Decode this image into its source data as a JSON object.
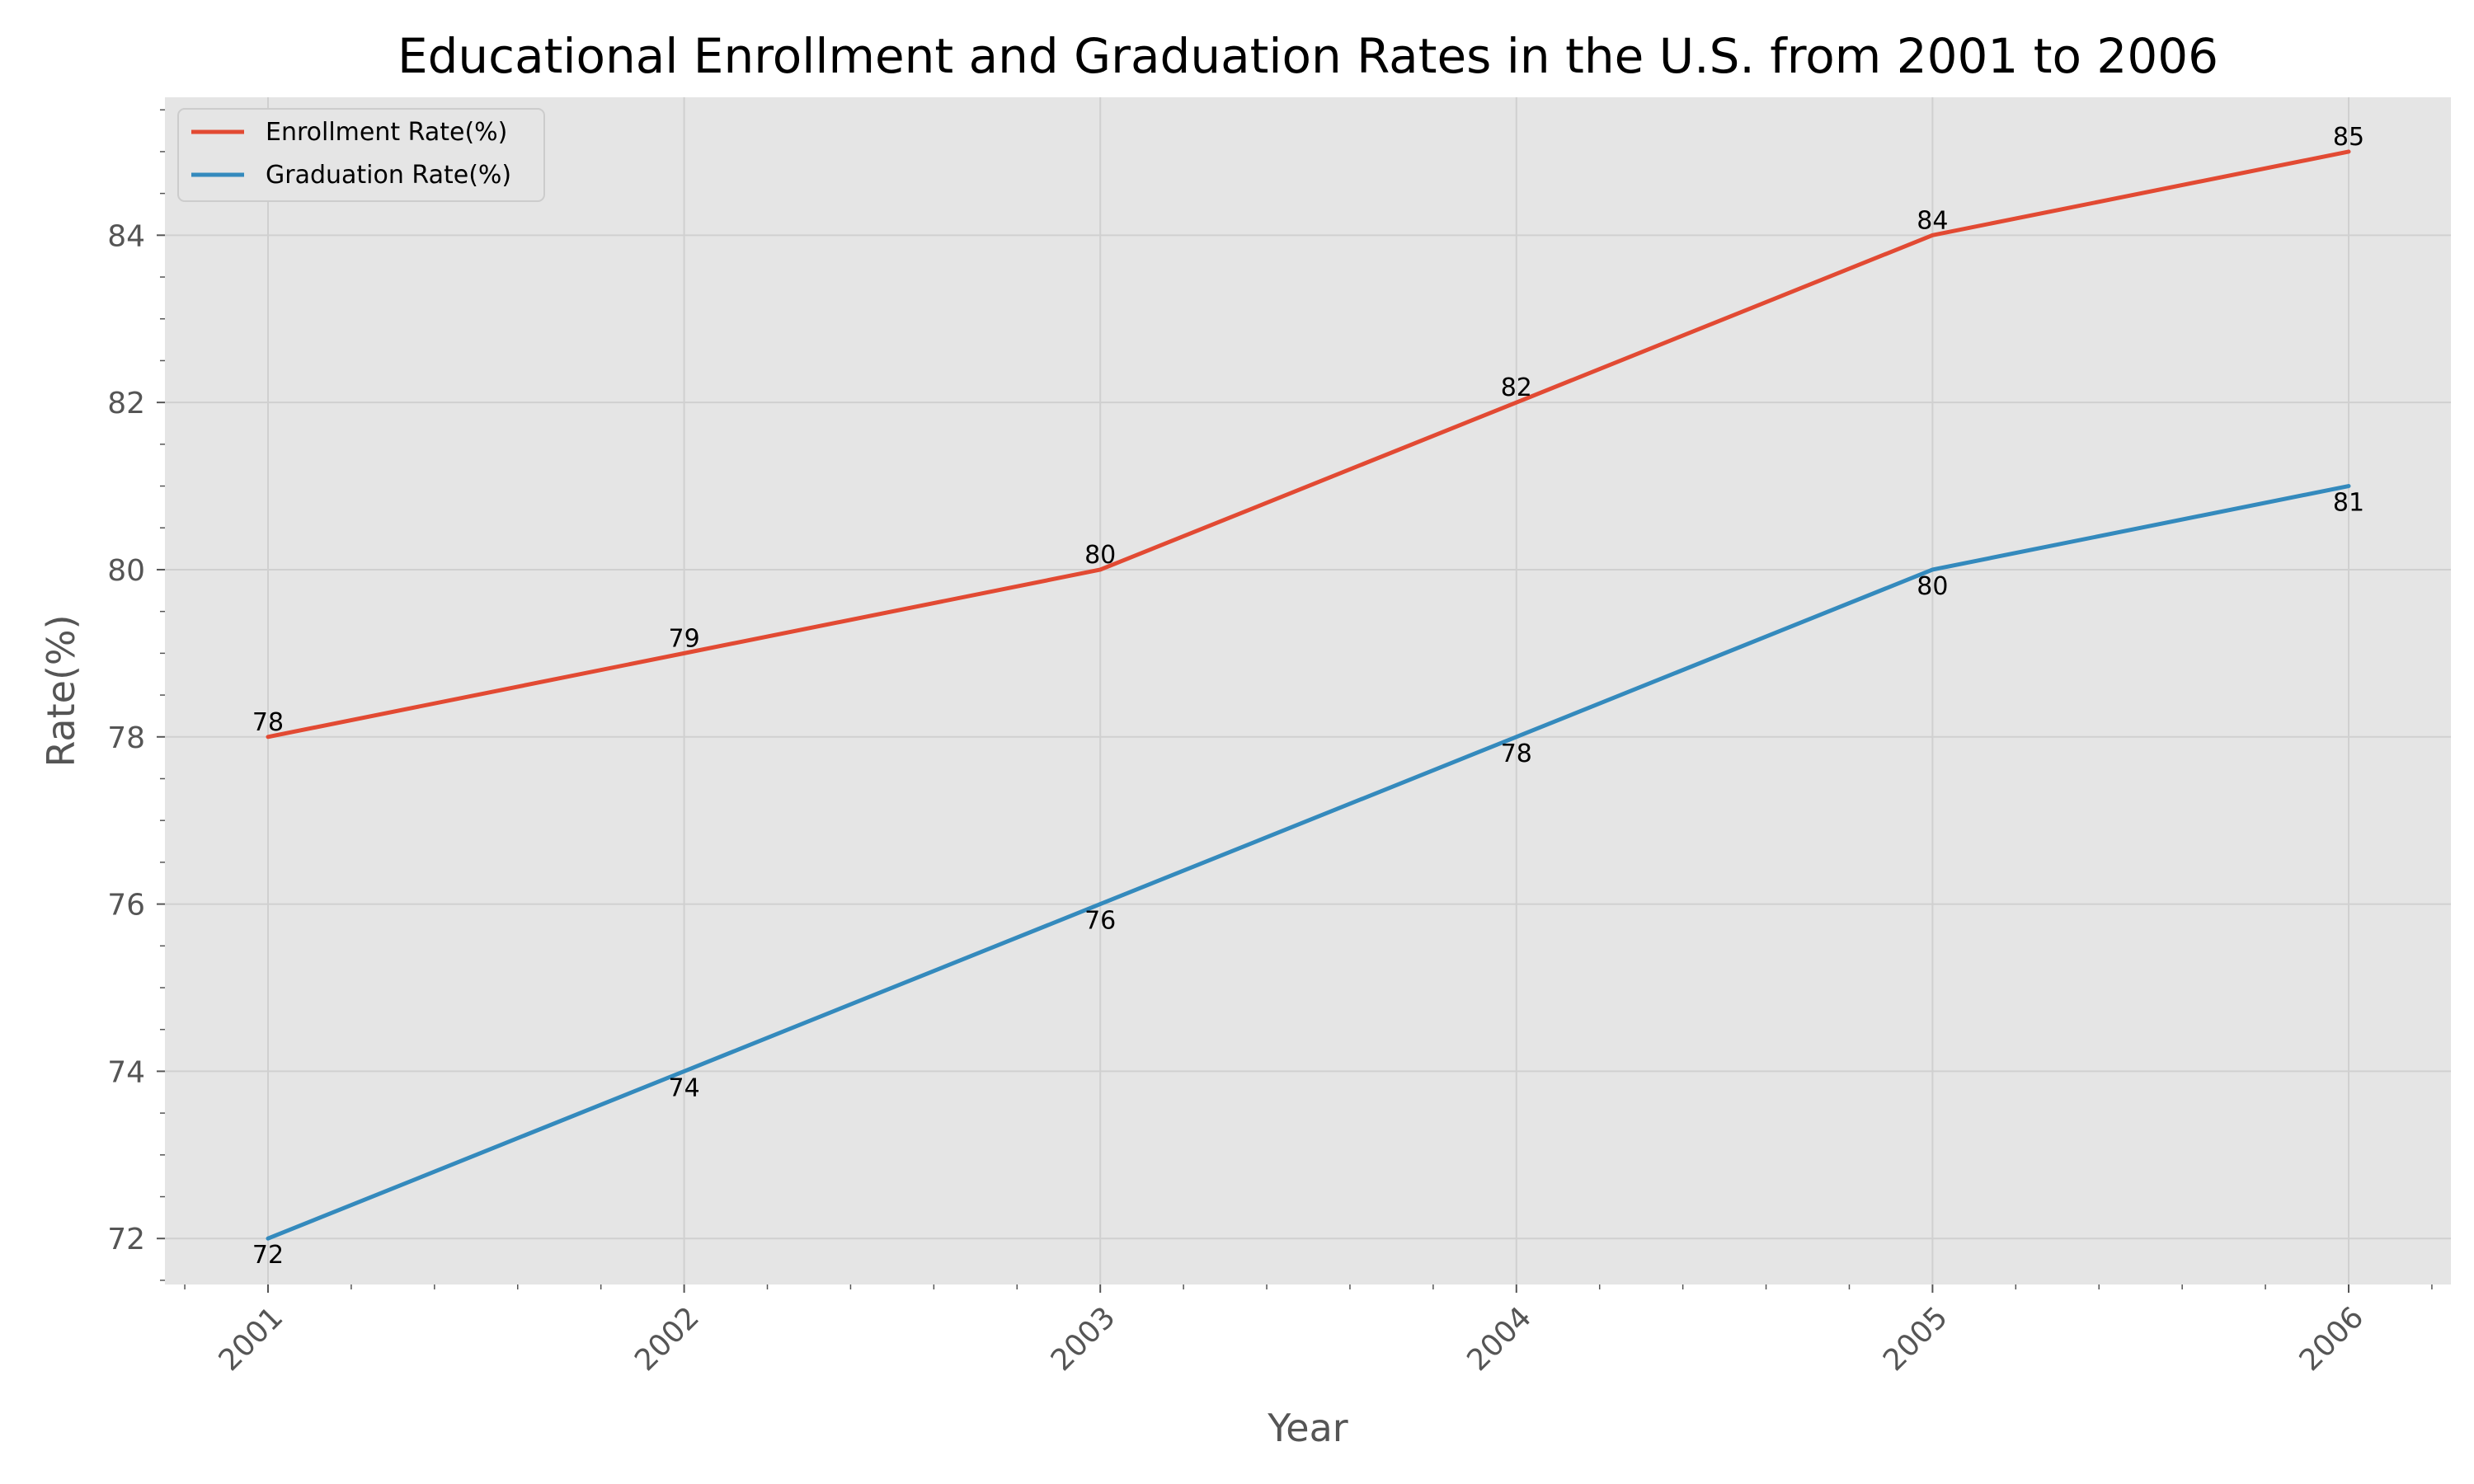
{
  "chart_data": {
    "type": "line",
    "title": "Educational Enrollment and Graduation Rates in the U.S. from 2001 to 2006",
    "xlabel": "Year",
    "ylabel": "Rate(%)",
    "categories": [
      "2001",
      "2002",
      "2003",
      "2004",
      "2005",
      "2006"
    ],
    "y_ticks": [
      72,
      74,
      76,
      78,
      80,
      82,
      84
    ],
    "ylim": [
      71.45,
      85.65
    ],
    "grid": true,
    "legend_position": "top-left",
    "background_color": "#e5e5e5",
    "grid_color": "#d0d0d0",
    "series": [
      {
        "name": "Enrollment Rate(%)",
        "color": "#e24a33",
        "values": [
          78,
          79,
          80,
          82,
          84,
          85
        ],
        "label_position": "above"
      },
      {
        "name": "Graduation Rate(%)",
        "color": "#348abd",
        "values": [
          72,
          74,
          76,
          78,
          80,
          81
        ],
        "label_position": "below"
      }
    ]
  }
}
